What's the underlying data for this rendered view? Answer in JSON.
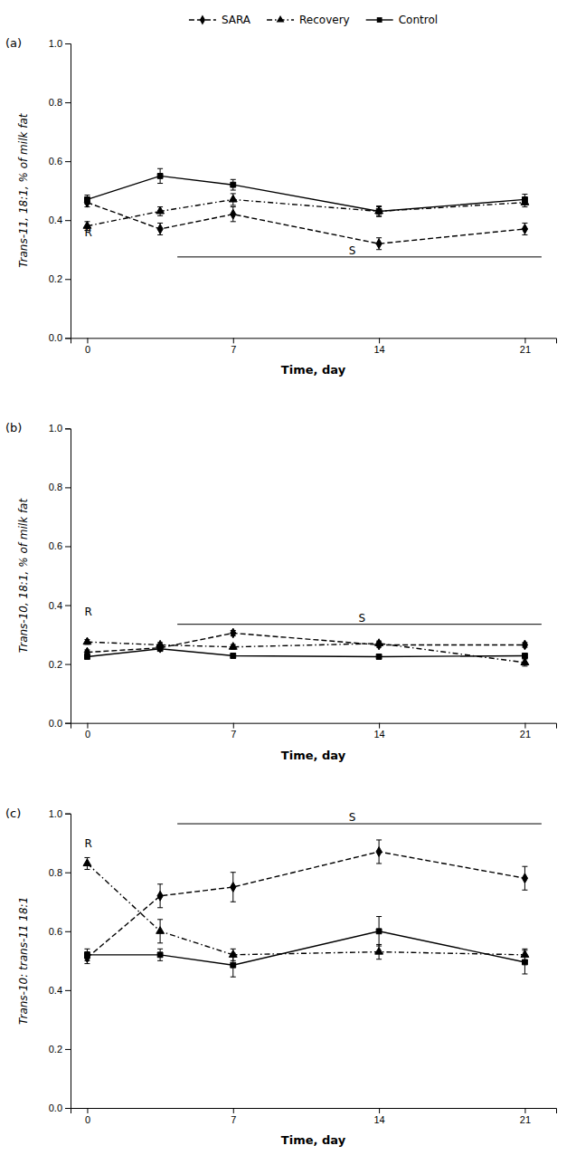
{
  "chart_data": [
    {
      "type": "line",
      "title": "(a)",
      "x": [
        0,
        3.5,
        7,
        14,
        21
      ],
      "xlabel": "Time, day",
      "ylabel": "Trans-11, 18:1, % of milk fat",
      "xlim": [
        -0.8,
        22.5
      ],
      "xticks": [
        0,
        7,
        14,
        21
      ],
      "ylim": [
        0.0,
        1.0
      ],
      "yticks": [
        {
          "value": 0.0,
          "label": "0.0"
        },
        0.2,
        0.4,
        0.6,
        0.8,
        {
          "value": 1.0,
          "label": "1.0"
        }
      ],
      "grid": false,
      "legend": "top",
      "series": [
        {
          "name": "Control",
          "color": "black",
          "marker": "square",
          "line_style": "solid",
          "values": [
            0.47,
            0.55,
            0.52,
            0.43,
            0.47
          ],
          "errors": [
            0.015,
            0.025,
            0.018,
            0.018,
            0.018
          ]
        },
        {
          "name": "Recovery",
          "color": "black",
          "marker": "triangle",
          "line_style": "dashdot",
          "values": [
            0.38,
            0.43,
            0.47,
            0.43,
            0.46
          ],
          "errors": [
            0.015,
            0.015,
            0.02,
            0.015,
            0.015
          ]
        },
        {
          "name": "SARA",
          "color": "black",
          "marker": "diamond",
          "line_style": "dashed",
          "values": [
            0.46,
            0.37,
            0.42,
            0.32,
            0.37
          ],
          "errors": [
            0.015,
            0.02,
            0.025,
            0.02,
            0.02
          ]
        }
      ],
      "lines": [
        {
          "y": 0.275,
          "x": [
            4.326,
            21.801
          ]
        }
      ],
      "annotations": [
        {
          "text": "S",
          "x": 12.714,
          "y": 0.275
        },
        {
          "text": "R",
          "x": 0.05,
          "y": 0.335
        }
      ]
    },
    {
      "type": "line",
      "title": "(b)",
      "x": [
        0,
        3.5,
        7,
        14,
        21
      ],
      "xlabel": "Time, day",
      "ylabel": "Trans-10, 18:1, % of milk fat",
      "xlim": [
        -0.8,
        22.5
      ],
      "xticks": [
        0,
        7,
        14,
        21
      ],
      "ylim": [
        0.0,
        1.0
      ],
      "yticks": [
        {
          "value": 0.0,
          "label": "0.0"
        },
        0.2,
        0.4,
        0.6,
        0.8,
        {
          "value": 1.0,
          "label": "1.0"
        }
      ],
      "grid": false,
      "series": [
        {
          "name": "Control",
          "color": "black",
          "marker": "square",
          "line_style": "solid",
          "values": [
            0.225,
            0.252,
            0.228,
            0.225,
            0.228
          ],
          "errors": [
            0.008,
            0.007,
            0.008,
            0.008,
            0.007
          ]
        },
        {
          "name": "Recovery",
          "color": "black",
          "marker": "triangle",
          "line_style": "dashdot",
          "values": [
            0.275,
            0.265,
            0.258,
            0.27,
            0.205
          ],
          "errors": [
            0.008,
            0.008,
            0.008,
            0.008,
            0.012
          ]
        },
        {
          "name": "SARA",
          "color": "black",
          "marker": "diamond",
          "line_style": "dashed",
          "values": [
            0.24,
            0.255,
            0.305,
            0.265,
            0.265
          ],
          "errors": [
            0.008,
            0.007,
            0.009,
            0.008,
            0.008
          ]
        }
      ],
      "lines": [
        {
          "y": 0.335,
          "x": [
            4.326,
            21.801
          ]
        }
      ],
      "annotations": [
        {
          "text": "S",
          "x": 13.18,
          "y": 0.335
        },
        {
          "text": "R",
          "x": 0.05,
          "y": 0.355
        }
      ]
    },
    {
      "type": "line",
      "title": "(c)",
      "x": [
        0,
        3.5,
        7,
        14,
        21
      ],
      "xlabel": "Time, day",
      "ylabel": "Trans-10: trans-11 18:1",
      "xlim": [
        -0.8,
        22.5
      ],
      "xticks": [
        0,
        7,
        14,
        21
      ],
      "ylim": [
        0.0,
        1.0
      ],
      "yticks": [
        {
          "value": 0.0,
          "label": "0.0"
        },
        0.2,
        0.4,
        0.6,
        0.8,
        {
          "value": 1.0,
          "label": "1.0"
        }
      ],
      "grid": false,
      "series": [
        {
          "name": "Control",
          "color": "black",
          "marker": "square",
          "line_style": "solid",
          "values": [
            0.52,
            0.52,
            0.485,
            0.6,
            0.495
          ],
          "errors": [
            0.02,
            0.02,
            0.04,
            0.05,
            0.04
          ]
        },
        {
          "name": "Recovery",
          "color": "black",
          "marker": "triangle",
          "line_style": "dashdot",
          "values": [
            0.83,
            0.6,
            0.52,
            0.53,
            0.52
          ],
          "errors": [
            0.02,
            0.04,
            0.02,
            0.025,
            0.02
          ]
        },
        {
          "name": "SARA",
          "color": "black",
          "marker": "diamond",
          "line_style": "dashed",
          "values": [
            0.51,
            0.72,
            0.75,
            0.87,
            0.78
          ],
          "errors": [
            0.02,
            0.04,
            0.05,
            0.04,
            0.04
          ]
        }
      ],
      "lines": [
        {
          "y": 0.965,
          "x": [
            4.326,
            21.801
          ]
        }
      ],
      "annotations": [
        {
          "text": "S",
          "x": 12.714,
          "y": 0.965
        },
        {
          "text": "R",
          "x": 0.05,
          "y": 0.875
        }
      ]
    }
  ]
}
